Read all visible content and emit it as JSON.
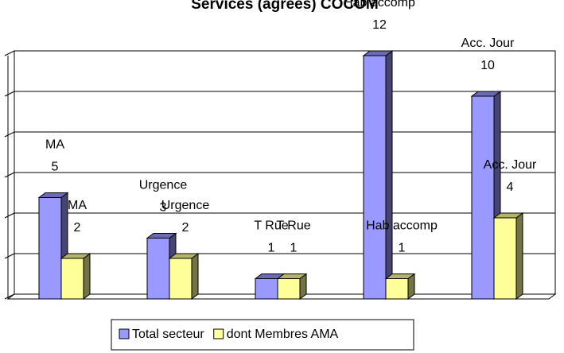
{
  "chart_data": {
    "type": "bar3d",
    "title": "Services (agréés) COCOM",
    "categories": [
      "MA",
      "Urgence",
      "T Rue",
      "Hab accomp",
      "Acc. Jour"
    ],
    "series": [
      {
        "name": "Total secteur",
        "color": "#9999ff",
        "values": [
          5,
          3,
          1,
          12,
          10
        ]
      },
      {
        "name": "dont Membres AMA",
        "color": "#ffff99",
        "values": [
          2,
          2,
          1,
          1,
          4
        ]
      }
    ],
    "ylim": [
      0,
      12
    ],
    "yticks": [
      0,
      2,
      4,
      6,
      8,
      10,
      12
    ],
    "grid": true,
    "legend": "bottom"
  }
}
